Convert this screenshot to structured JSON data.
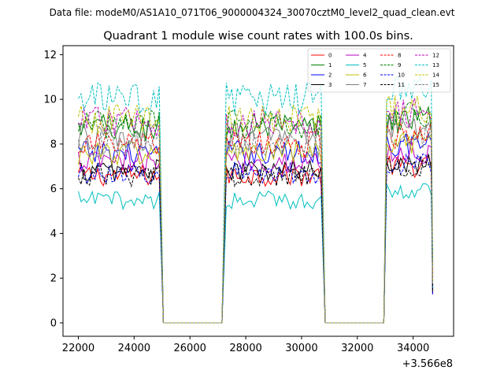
{
  "chart_data": {
    "type": "line",
    "suptitle": "Data file: modeM0/AS1A10_071T06_9000004324_30070cztM0_level2_quad_clean.evt",
    "title": "Quadrant 1 module wise count rates with 100.0s bins.",
    "xlabel": "",
    "ylabel": "",
    "x_offset_label": "+3.566e8",
    "xlim": [
      21450,
      35450
    ],
    "ylim": [
      -0.6,
      12.4
    ],
    "x_ticks": [
      22000,
      24000,
      26000,
      28000,
      30000,
      32000,
      34000
    ],
    "x_tick_labels": [
      "22000",
      "24000",
      "26000",
      "28000",
      "30000",
      "32000",
      "34000"
    ],
    "y_ticks": [
      0,
      2,
      4,
      6,
      8,
      10,
      12
    ],
    "y_tick_labels": [
      "0",
      "2",
      "4",
      "6",
      "8",
      "10",
      "12"
    ],
    "grid": false,
    "legend_position": "top-right",
    "segments": [
      {
        "start": 22000,
        "end": 24950
      },
      {
        "start": 27300,
        "end": 30750
      },
      {
        "start": 33050,
        "end": 34650
      }
    ],
    "bin_width_s": 100,
    "series": [
      {
        "name": "0",
        "color": "#ff0000",
        "dash": "solid",
        "level": 6.6
      },
      {
        "name": "1",
        "color": "#008000",
        "dash": "solid",
        "level": 8.7
      },
      {
        "name": "2",
        "color": "#0000ff",
        "dash": "solid",
        "level": 7.6
      },
      {
        "name": "3",
        "color": "#000000",
        "dash": "solid",
        "level": 6.8
      },
      {
        "name": "4",
        "color": "#bf00bf",
        "dash": "solid",
        "level": 7.2
      },
      {
        "name": "5",
        "color": "#00bfbf",
        "dash": "solid",
        "level": 5.5
      },
      {
        "name": "6",
        "color": "#bfbf00",
        "dash": "solid",
        "level": 7.6
      },
      {
        "name": "7",
        "color": "#808080",
        "dash": "solid",
        "level": 8.3
      },
      {
        "name": "8",
        "color": "#ff0000",
        "dash": "dashed",
        "level": 8.0
      },
      {
        "name": "9",
        "color": "#008000",
        "dash": "dashed",
        "level": 8.9
      },
      {
        "name": "10",
        "color": "#0000ff",
        "dash": "dashed",
        "level": 6.7
      },
      {
        "name": "11",
        "color": "#000000",
        "dash": "dashed",
        "level": 6.6
      },
      {
        "name": "12",
        "color": "#bf00bf",
        "dash": "dashed",
        "level": 9.0
      },
      {
        "name": "13",
        "color": "#00bfbf",
        "dash": "dashed",
        "level": 10.0
      },
      {
        "name": "14",
        "color": "#bfbf00",
        "dash": "dashed",
        "level": 9.1
      },
      {
        "name": "15",
        "color": "#808080",
        "dash": "dashed",
        "level": 8.0
      }
    ]
  }
}
